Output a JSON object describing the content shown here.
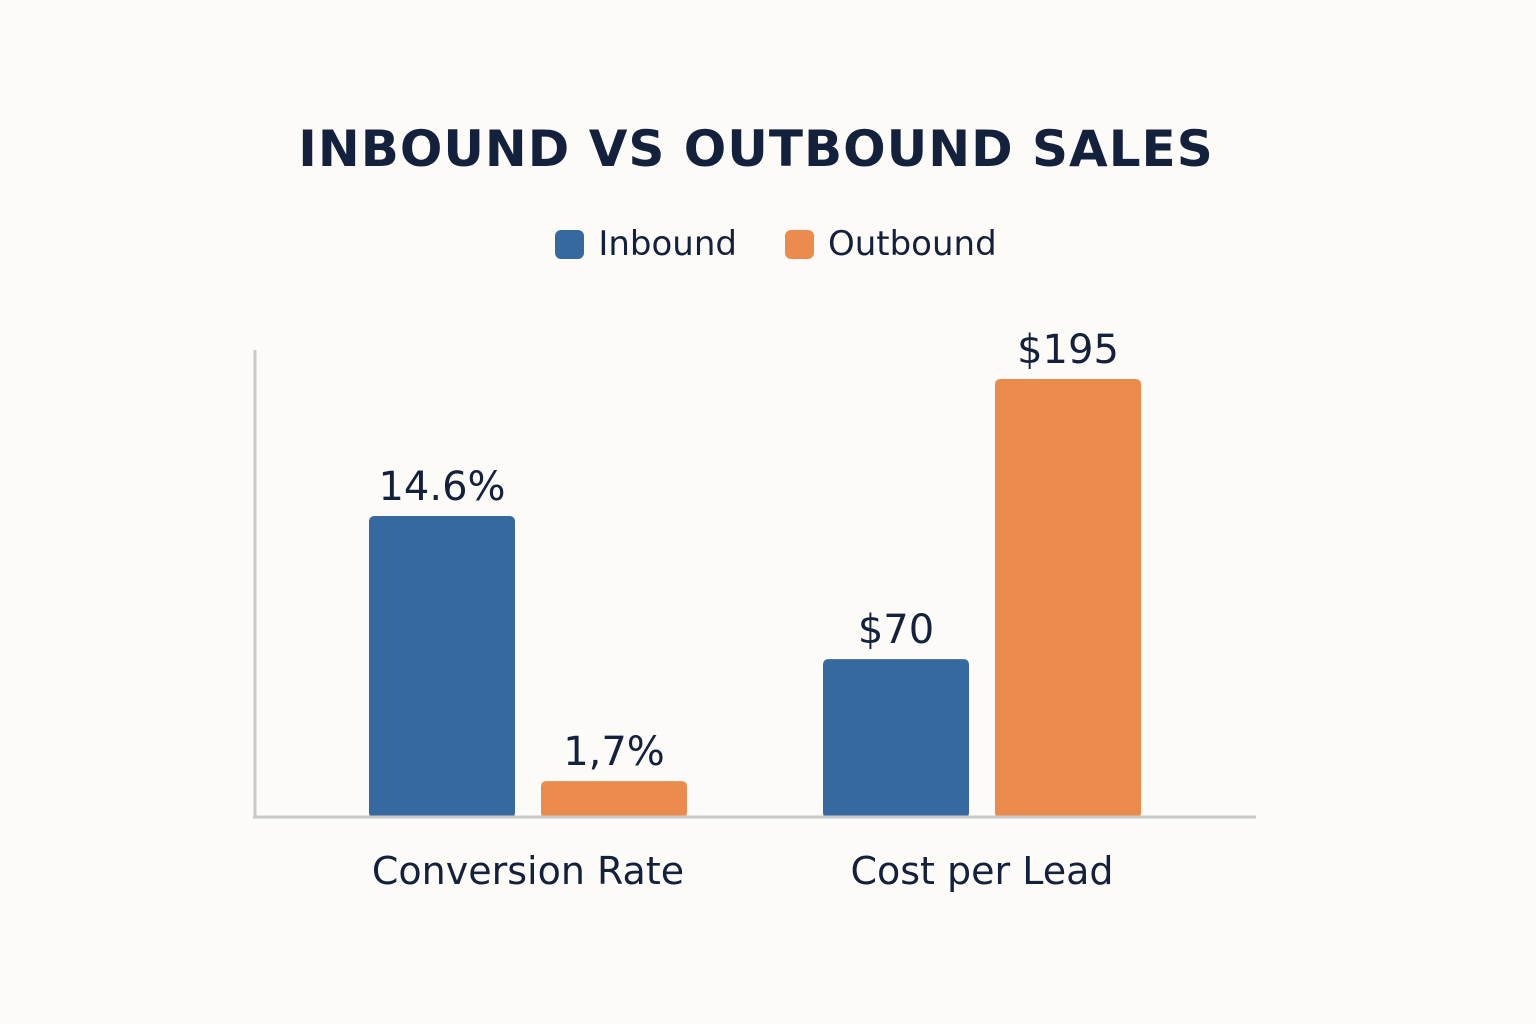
{
  "colors": {
    "inbound": "#36699f",
    "outbound": "#eb8b4d",
    "axis": "#c8c8c8",
    "text": "#14213d",
    "background": "#fcfbf7"
  },
  "chart_data": {
    "type": "bar",
    "title": "INBOUND VS OUTBOUND SALES",
    "categories": [
      "Conversion Rate",
      "Cost per Lead"
    ],
    "series": [
      {
        "name": "Inbound",
        "values": [
          14.6,
          70
        ],
        "labels": [
          "14.6%",
          "$70"
        ],
        "color": "#36699f"
      },
      {
        "name": "Outbound",
        "values": [
          1.7,
          195
        ],
        "labels": [
          "1,7%",
          "$195"
        ],
        "color": "#eb8b4d"
      }
    ],
    "legend_position": "top-center",
    "grid": false,
    "note": "Each category uses its own value scale"
  }
}
